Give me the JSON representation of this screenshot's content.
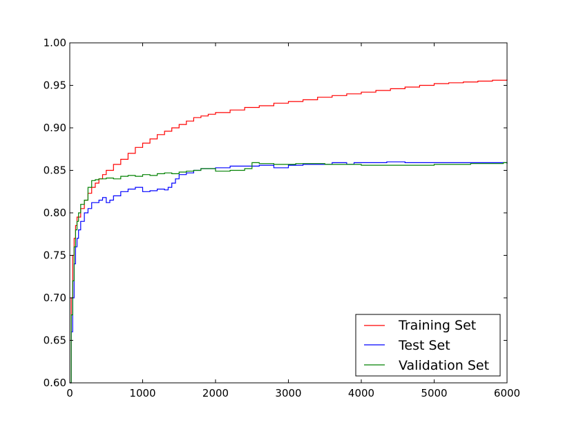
{
  "chart_data": {
    "type": "line",
    "title": "",
    "xlabel": "",
    "ylabel": "",
    "xlim": [
      0,
      6000
    ],
    "ylim": [
      0.6,
      1.0
    ],
    "xticks": [
      0,
      1000,
      2000,
      3000,
      4000,
      5000,
      6000
    ],
    "xtick_labels": [
      "0",
      "1000",
      "2000",
      "3000",
      "4000",
      "5000",
      "6000"
    ],
    "yticks": [
      0.6,
      0.65,
      0.7,
      0.75,
      0.8,
      0.85,
      0.9,
      0.95,
      1.0
    ],
    "ytick_labels": [
      "0.60",
      "0.65",
      "0.70",
      "0.75",
      "0.80",
      "0.85",
      "0.90",
      "0.95",
      "1.00"
    ],
    "grid": false,
    "legend_position": "lower-right",
    "series": [
      {
        "name": "Training Set",
        "color": "#ff0000",
        "x": [
          0,
          20,
          40,
          60,
          80,
          100,
          150,
          200,
          250,
          300,
          350,
          400,
          450,
          500,
          600,
          700,
          800,
          900,
          1000,
          1100,
          1200,
          1300,
          1400,
          1500,
          1600,
          1700,
          1800,
          1900,
          2000,
          2200,
          2400,
          2600,
          2800,
          3000,
          3200,
          3400,
          3600,
          3800,
          4000,
          4200,
          4400,
          4600,
          4800,
          5000,
          5200,
          5400,
          5600,
          5800,
          6000
        ],
        "y": [
          0.6,
          0.7,
          0.75,
          0.77,
          0.785,
          0.795,
          0.805,
          0.815,
          0.823,
          0.83,
          0.835,
          0.84,
          0.845,
          0.85,
          0.857,
          0.863,
          0.87,
          0.877,
          0.882,
          0.887,
          0.892,
          0.896,
          0.9,
          0.904,
          0.908,
          0.912,
          0.914,
          0.916,
          0.918,
          0.921,
          0.924,
          0.926,
          0.929,
          0.931,
          0.933,
          0.936,
          0.938,
          0.94,
          0.942,
          0.944,
          0.946,
          0.948,
          0.95,
          0.952,
          0.953,
          0.954,
          0.955,
          0.956,
          0.957
        ]
      },
      {
        "name": "Test Set",
        "color": "#0000ff",
        "x": [
          0,
          20,
          40,
          60,
          80,
          100,
          120,
          150,
          200,
          250,
          300,
          400,
          450,
          500,
          550,
          600,
          700,
          800,
          900,
          1000,
          1100,
          1200,
          1300,
          1350,
          1400,
          1450,
          1500,
          1600,
          1700,
          1800,
          2000,
          2200,
          2400,
          2600,
          2800,
          3000,
          3200,
          3500,
          3600,
          3800,
          3900,
          4200,
          4350,
          4600,
          5000,
          5500,
          5950,
          6000
        ],
        "y": [
          0.6,
          0.66,
          0.7,
          0.74,
          0.76,
          0.77,
          0.78,
          0.79,
          0.8,
          0.805,
          0.812,
          0.815,
          0.818,
          0.812,
          0.815,
          0.82,
          0.825,
          0.828,
          0.83,
          0.825,
          0.826,
          0.828,
          0.827,
          0.83,
          0.835,
          0.84,
          0.845,
          0.847,
          0.85,
          0.852,
          0.853,
          0.855,
          0.855,
          0.856,
          0.853,
          0.856,
          0.857,
          0.857,
          0.859,
          0.857,
          0.859,
          0.859,
          0.86,
          0.859,
          0.859,
          0.859,
          0.859,
          0.858
        ]
      },
      {
        "name": "Validation Set",
        "color": "#008000",
        "x": [
          0,
          20,
          40,
          60,
          80,
          100,
          120,
          150,
          200,
          250,
          300,
          350,
          400,
          500,
          600,
          700,
          800,
          900,
          1000,
          1100,
          1200,
          1300,
          1400,
          1500,
          1600,
          1700,
          1800,
          2000,
          2200,
          2400,
          2500,
          2600,
          2800,
          3000,
          3100,
          3500,
          4000,
          4500,
          5000,
          5500,
          5950,
          6000
        ],
        "y": [
          0.6,
          0.68,
          0.72,
          0.76,
          0.78,
          0.79,
          0.8,
          0.81,
          0.815,
          0.83,
          0.838,
          0.839,
          0.84,
          0.841,
          0.84,
          0.843,
          0.844,
          0.843,
          0.845,
          0.844,
          0.846,
          0.847,
          0.846,
          0.848,
          0.849,
          0.85,
          0.852,
          0.849,
          0.85,
          0.852,
          0.859,
          0.858,
          0.857,
          0.857,
          0.858,
          0.857,
          0.856,
          0.856,
          0.857,
          0.858,
          0.859,
          0.858
        ]
      }
    ]
  }
}
